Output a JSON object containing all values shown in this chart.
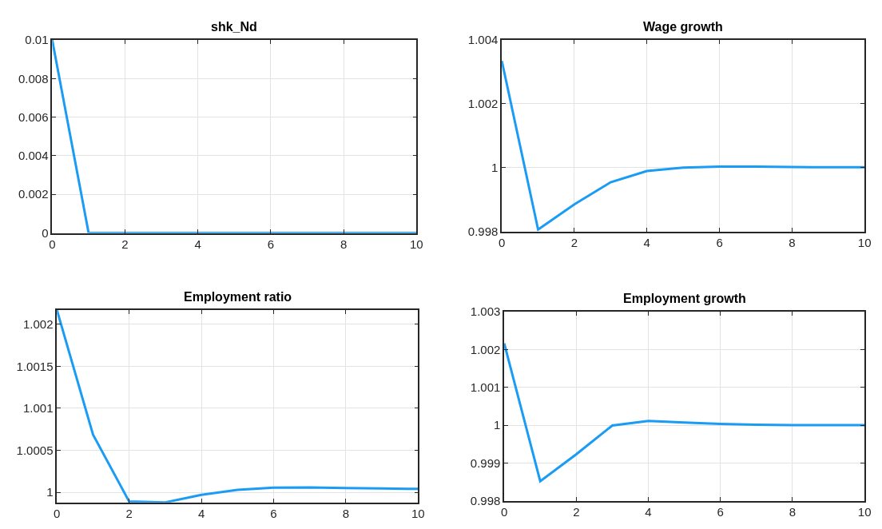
{
  "chart_data": [
    {
      "type": "line",
      "title": "shk_Nd",
      "x": [
        0,
        1,
        2,
        3,
        4,
        5,
        6,
        7,
        8,
        9,
        10
      ],
      "xlim": [
        0,
        10
      ],
      "xticks": [
        0,
        2,
        4,
        6,
        8,
        10
      ],
      "ylim": [
        0,
        0.01
      ],
      "yticks": [
        0,
        0.002,
        0.004,
        0.006,
        0.008,
        0.01
      ],
      "grid": true,
      "series": [
        {
          "color": "#1a9cf5",
          "values": [
            0.01,
            0,
            0,
            0,
            0,
            0,
            0,
            0,
            0,
            0,
            0
          ]
        }
      ]
    },
    {
      "type": "line",
      "title": "Wage growth",
      "x": [
        0,
        1,
        2,
        3,
        4,
        5,
        6,
        7,
        8,
        9,
        10
      ],
      "xlim": [
        0,
        10
      ],
      "xticks": [
        0,
        2,
        4,
        6,
        8,
        10
      ],
      "ylim": [
        0.998,
        1.004
      ],
      "yticks": [
        0.998,
        1,
        1.002,
        1.004
      ],
      "grid": true,
      "series": [
        {
          "color": "#1a9cf5",
          "values": [
            1.00334,
            0.99806,
            0.99885,
            0.99954,
            0.99989,
            1.0,
            1.00003,
            1.00003,
            1.00002,
            1.00001,
            1.00001
          ]
        }
      ]
    },
    {
      "type": "line",
      "title": "Employment ratio",
      "x": [
        0,
        1,
        2,
        3,
        4,
        5,
        6,
        7,
        8,
        9,
        10
      ],
      "xlim": [
        0,
        10
      ],
      "xticks": [
        0,
        2,
        4,
        6,
        8,
        10
      ],
      "ylim": [
        0.99988,
        1.00217
      ],
      "yticks": [
        1,
        1.0005,
        1.001,
        1.0015,
        1.002
      ],
      "grid": true,
      "series": [
        {
          "color": "#1a9cf5",
          "values": [
            1.00217,
            1.000686,
            0.99989,
            0.99988,
            0.99997,
            1.00003,
            1.000055,
            1.000058,
            1.00005,
            1.000045,
            1.00004
          ]
        }
      ]
    },
    {
      "type": "line",
      "title": "Employment growth",
      "x": [
        0,
        1,
        2,
        3,
        4,
        5,
        6,
        7,
        8,
        9,
        10
      ],
      "xlim": [
        0,
        10
      ],
      "xticks": [
        0,
        2,
        4,
        6,
        8,
        10
      ],
      "ylim": [
        0.998,
        1.003
      ],
      "yticks": [
        0.998,
        0.999,
        1,
        1.001,
        1.002,
        1.003
      ],
      "grid": true,
      "series": [
        {
          "color": "#1a9cf5",
          "values": [
            1.00216,
            0.99852,
            0.99923,
            0.99999,
            1.00011,
            1.00007,
            1.00003,
            1.00001,
            1.0,
            1.0,
            1.0
          ]
        }
      ]
    }
  ]
}
